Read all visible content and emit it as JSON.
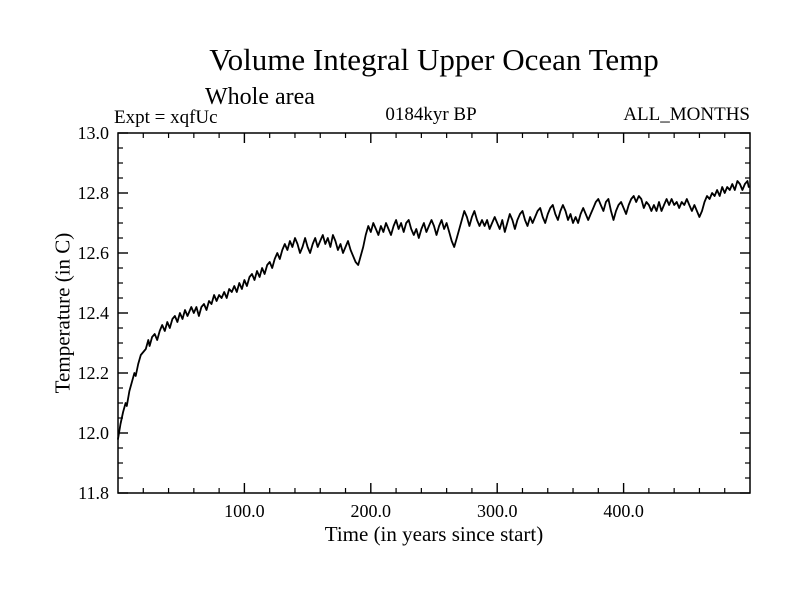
{
  "header": {
    "subtitle": "Whole area",
    "experiment": "Expt = xqfUc",
    "epoch": "0184kyr BP",
    "months": "ALL_MONTHS"
  },
  "chart_data": {
    "type": "line",
    "title": "Volume Integral Upper Ocean Temp",
    "xlabel": "Time (in years since start)",
    "ylabel": "Temperature (in C)",
    "xlim": [
      0,
      500
    ],
    "ylim": [
      11.8,
      13.0
    ],
    "x_major_ticks": [
      100,
      200,
      300,
      400
    ],
    "x_major_labels": [
      "100.0",
      "200.0",
      "300.0",
      "400.0"
    ],
    "x_minor_step": 20,
    "y_major_ticks": [
      11.8,
      12.0,
      12.2,
      12.4,
      12.6,
      12.8,
      13.0
    ],
    "y_major_labels": [
      "11.8",
      "12.0",
      "12.2",
      "12.4",
      "12.6",
      "12.8",
      "13.0"
    ],
    "y_minor_step": 0.05,
    "grid": false,
    "legend": "none",
    "background_color": "#ffffff",
    "line_color": "#000000",
    "series": [
      {
        "name": "volume-integral-upper-ocean-temperature",
        "points": [
          [
            0,
            11.98
          ],
          [
            2,
            12.03
          ],
          [
            4,
            12.07
          ],
          [
            6,
            12.1
          ],
          [
            7,
            12.09
          ],
          [
            9,
            12.14
          ],
          [
            11,
            12.17
          ],
          [
            13,
            12.2
          ],
          [
            14,
            12.19
          ],
          [
            16,
            12.23
          ],
          [
            18,
            12.26
          ],
          [
            20,
            12.27
          ],
          [
            22,
            12.28
          ],
          [
            24,
            12.31
          ],
          [
            25,
            12.29
          ],
          [
            27,
            12.32
          ],
          [
            29,
            12.33
          ],
          [
            31,
            12.31
          ],
          [
            33,
            12.34
          ],
          [
            35,
            12.36
          ],
          [
            37,
            12.34
          ],
          [
            39,
            12.37
          ],
          [
            41,
            12.35
          ],
          [
            43,
            12.38
          ],
          [
            45,
            12.39
          ],
          [
            47,
            12.37
          ],
          [
            49,
            12.4
          ],
          [
            51,
            12.38
          ],
          [
            53,
            12.41
          ],
          [
            55,
            12.39
          ],
          [
            58,
            12.42
          ],
          [
            60,
            12.4
          ],
          [
            62,
            12.42
          ],
          [
            64,
            12.39
          ],
          [
            66,
            12.42
          ],
          [
            68,
            12.43
          ],
          [
            70,
            12.41
          ],
          [
            72,
            12.44
          ],
          [
            74,
            12.43
          ],
          [
            76,
            12.46
          ],
          [
            78,
            12.44
          ],
          [
            80,
            12.46
          ],
          [
            82,
            12.45
          ],
          [
            84,
            12.47
          ],
          [
            86,
            12.45
          ],
          [
            88,
            12.48
          ],
          [
            90,
            12.47
          ],
          [
            92,
            12.49
          ],
          [
            94,
            12.47
          ],
          [
            96,
            12.5
          ],
          [
            98,
            12.48
          ],
          [
            100,
            12.51
          ],
          [
            102,
            12.49
          ],
          [
            104,
            12.52
          ],
          [
            106,
            12.53
          ],
          [
            108,
            12.51
          ],
          [
            110,
            12.54
          ],
          [
            112,
            12.52
          ],
          [
            114,
            12.55
          ],
          [
            116,
            12.53
          ],
          [
            118,
            12.56
          ],
          [
            120,
            12.57
          ],
          [
            122,
            12.55
          ],
          [
            124,
            12.58
          ],
          [
            126,
            12.6
          ],
          [
            128,
            12.58
          ],
          [
            130,
            12.61
          ],
          [
            132,
            12.63
          ],
          [
            134,
            12.61
          ],
          [
            136,
            12.64
          ],
          [
            138,
            12.62
          ],
          [
            140,
            12.65
          ],
          [
            142,
            12.63
          ],
          [
            144,
            12.6
          ],
          [
            146,
            12.62
          ],
          [
            148,
            12.65
          ],
          [
            150,
            12.62
          ],
          [
            152,
            12.6
          ],
          [
            154,
            12.63
          ],
          [
            156,
            12.65
          ],
          [
            158,
            12.62
          ],
          [
            160,
            12.64
          ],
          [
            162,
            12.66
          ],
          [
            164,
            12.63
          ],
          [
            166,
            12.65
          ],
          [
            168,
            12.62
          ],
          [
            170,
            12.66
          ],
          [
            172,
            12.64
          ],
          [
            174,
            12.61
          ],
          [
            176,
            12.63
          ],
          [
            178,
            12.6
          ],
          [
            180,
            12.62
          ],
          [
            182,
            12.64
          ],
          [
            184,
            12.61
          ],
          [
            186,
            12.59
          ],
          [
            188,
            12.57
          ],
          [
            190,
            12.56
          ],
          [
            192,
            12.59
          ],
          [
            194,
            12.62
          ],
          [
            196,
            12.66
          ],
          [
            198,
            12.69
          ],
          [
            200,
            12.67
          ],
          [
            202,
            12.7
          ],
          [
            204,
            12.68
          ],
          [
            206,
            12.66
          ],
          [
            208,
            12.69
          ],
          [
            210,
            12.67
          ],
          [
            212,
            12.7
          ],
          [
            214,
            12.68
          ],
          [
            216,
            12.66
          ],
          [
            218,
            12.69
          ],
          [
            220,
            12.71
          ],
          [
            222,
            12.68
          ],
          [
            224,
            12.7
          ],
          [
            226,
            12.67
          ],
          [
            228,
            12.7
          ],
          [
            230,
            12.71
          ],
          [
            232,
            12.68
          ],
          [
            234,
            12.66
          ],
          [
            236,
            12.68
          ],
          [
            238,
            12.65
          ],
          [
            240,
            12.68
          ],
          [
            242,
            12.7
          ],
          [
            244,
            12.67
          ],
          [
            246,
            12.69
          ],
          [
            248,
            12.71
          ],
          [
            250,
            12.69
          ],
          [
            252,
            12.66
          ],
          [
            254,
            12.69
          ],
          [
            256,
            12.71
          ],
          [
            258,
            12.68
          ],
          [
            260,
            12.7
          ],
          [
            262,
            12.67
          ],
          [
            264,
            12.64
          ],
          [
            266,
            12.62
          ],
          [
            268,
            12.65
          ],
          [
            270,
            12.68
          ],
          [
            272,
            12.71
          ],
          [
            274,
            12.74
          ],
          [
            276,
            12.72
          ],
          [
            278,
            12.69
          ],
          [
            280,
            12.72
          ],
          [
            282,
            12.74
          ],
          [
            284,
            12.71
          ],
          [
            286,
            12.69
          ],
          [
            288,
            12.71
          ],
          [
            290,
            12.69
          ],
          [
            292,
            12.71
          ],
          [
            294,
            12.68
          ],
          [
            296,
            12.7
          ],
          [
            298,
            12.72
          ],
          [
            300,
            12.7
          ],
          [
            302,
            12.68
          ],
          [
            304,
            12.71
          ],
          [
            306,
            12.67
          ],
          [
            308,
            12.7
          ],
          [
            310,
            12.73
          ],
          [
            312,
            12.71
          ],
          [
            314,
            12.68
          ],
          [
            316,
            12.71
          ],
          [
            318,
            12.73
          ],
          [
            320,
            12.74
          ],
          [
            322,
            12.71
          ],
          [
            324,
            12.69
          ],
          [
            326,
            12.72
          ],
          [
            328,
            12.7
          ],
          [
            330,
            12.72
          ],
          [
            332,
            12.74
          ],
          [
            334,
            12.75
          ],
          [
            336,
            12.72
          ],
          [
            338,
            12.7
          ],
          [
            340,
            12.73
          ],
          [
            342,
            12.75
          ],
          [
            344,
            12.76
          ],
          [
            346,
            12.73
          ],
          [
            348,
            12.71
          ],
          [
            350,
            12.74
          ],
          [
            352,
            12.76
          ],
          [
            354,
            12.74
          ],
          [
            356,
            12.71
          ],
          [
            358,
            12.73
          ],
          [
            360,
            12.7
          ],
          [
            362,
            12.72
          ],
          [
            364,
            12.7
          ],
          [
            366,
            12.73
          ],
          [
            368,
            12.75
          ],
          [
            370,
            12.73
          ],
          [
            372,
            12.71
          ],
          [
            374,
            12.73
          ],
          [
            376,
            12.75
          ],
          [
            378,
            12.77
          ],
          [
            380,
            12.78
          ],
          [
            382,
            12.76
          ],
          [
            384,
            12.74
          ],
          [
            386,
            12.77
          ],
          [
            388,
            12.78
          ],
          [
            390,
            12.74
          ],
          [
            392,
            12.71
          ],
          [
            394,
            12.74
          ],
          [
            396,
            12.76
          ],
          [
            398,
            12.77
          ],
          [
            400,
            12.75
          ],
          [
            402,
            12.73
          ],
          [
            404,
            12.76
          ],
          [
            406,
            12.78
          ],
          [
            408,
            12.79
          ],
          [
            410,
            12.77
          ],
          [
            412,
            12.79
          ],
          [
            414,
            12.78
          ],
          [
            416,
            12.75
          ],
          [
            418,
            12.77
          ],
          [
            420,
            12.76
          ],
          [
            422,
            12.74
          ],
          [
            424,
            12.76
          ],
          [
            426,
            12.74
          ],
          [
            428,
            12.77
          ],
          [
            430,
            12.74
          ],
          [
            432,
            12.76
          ],
          [
            434,
            12.78
          ],
          [
            436,
            12.76
          ],
          [
            438,
            12.78
          ],
          [
            440,
            12.76
          ],
          [
            442,
            12.77
          ],
          [
            444,
            12.75
          ],
          [
            446,
            12.77
          ],
          [
            448,
            12.76
          ],
          [
            450,
            12.78
          ],
          [
            452,
            12.76
          ],
          [
            454,
            12.74
          ],
          [
            456,
            12.76
          ],
          [
            458,
            12.74
          ],
          [
            460,
            12.72
          ],
          [
            462,
            12.74
          ],
          [
            464,
            12.77
          ],
          [
            466,
            12.79
          ],
          [
            468,
            12.78
          ],
          [
            470,
            12.8
          ],
          [
            472,
            12.79
          ],
          [
            474,
            12.81
          ],
          [
            476,
            12.79
          ],
          [
            478,
            12.82
          ],
          [
            480,
            12.8
          ],
          [
            482,
            12.82
          ],
          [
            484,
            12.81
          ],
          [
            486,
            12.83
          ],
          [
            488,
            12.81
          ],
          [
            490,
            12.84
          ],
          [
            492,
            12.83
          ],
          [
            494,
            12.81
          ],
          [
            496,
            12.83
          ],
          [
            498,
            12.84
          ],
          [
            499,
            12.82
          ]
        ]
      }
    ]
  }
}
